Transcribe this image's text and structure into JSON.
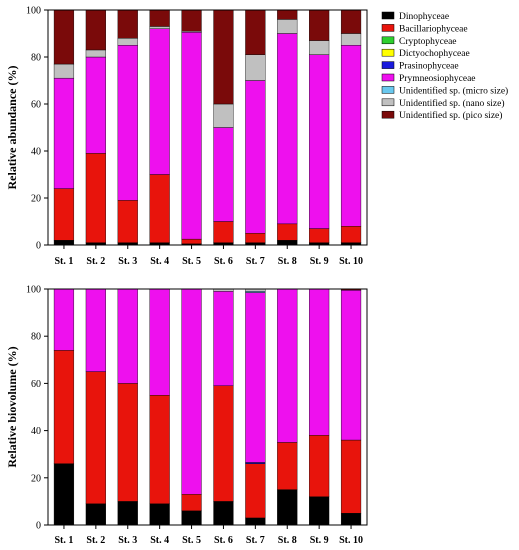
{
  "chart_data": [
    {
      "type": "bar",
      "stacked": true,
      "categories": [
        "St. 1",
        "St. 2",
        "St. 3",
        "St. 4",
        "St. 5",
        "St. 6",
        "St. 7",
        "St. 8",
        "St. 9",
        "St. 10"
      ],
      "ylabel": "Relative abundance (%)",
      "ylim": [
        0,
        100
      ],
      "yticks": [
        0,
        20,
        40,
        60,
        80,
        100
      ],
      "legend": "right",
      "series": [
        {
          "name": "Dinophyceae",
          "color": "#000000",
          "values": [
            2,
            1,
            1,
            1,
            0.5,
            1,
            1,
            2,
            1,
            1
          ]
        },
        {
          "name": "Bacillariophyceae",
          "color": "#e8140c",
          "values": [
            22,
            38,
            18,
            29,
            2,
            9,
            4,
            7,
            6,
            7
          ]
        },
        {
          "name": "Cryptophyceae",
          "color": "#2fcf2f",
          "values": [
            0,
            0,
            0,
            0,
            0,
            0,
            0,
            0,
            0,
            0
          ]
        },
        {
          "name": "Dictyochophyceae",
          "color": "#ffff00",
          "values": [
            0,
            0,
            0,
            0,
            0,
            0,
            0,
            0,
            0,
            0
          ]
        },
        {
          "name": "Prasinophyceae",
          "color": "#1a1adc",
          "values": [
            0,
            0,
            0,
            0,
            0,
            0,
            0,
            0,
            0,
            0
          ]
        },
        {
          "name": "Prymneosiophyceae",
          "color": "#ee10ee",
          "values": [
            47,
            41,
            66,
            62,
            88,
            40,
            65,
            81,
            74,
            77
          ]
        },
        {
          "name": "Unidentified sp. (micro size)",
          "color": "#69c8ee",
          "values": [
            0,
            0,
            0,
            0,
            0,
            0,
            0,
            0,
            0,
            0
          ]
        },
        {
          "name": "Unidentified sp. (nano size)",
          "color": "#c0c0c0",
          "values": [
            6,
            3,
            3,
            1,
            0.5,
            10,
            11,
            6,
            6,
            5
          ]
        },
        {
          "name": "Unidentified sp. (pico size)",
          "color": "#7a0a0a",
          "values": [
            23,
            17,
            12,
            7,
            9,
            40,
            19,
            4,
            13,
            10
          ]
        }
      ]
    },
    {
      "type": "bar",
      "stacked": true,
      "categories": [
        "St. 1",
        "St. 2",
        "St. 3",
        "St. 4",
        "St. 5",
        "St. 6",
        "St. 7",
        "St. 8",
        "St. 9",
        "St. 10"
      ],
      "ylabel": "Relative biovolume (%)",
      "ylim": [
        0,
        100
      ],
      "yticks": [
        0,
        20,
        40,
        60,
        80,
        100
      ],
      "series": [
        {
          "name": "Dinophyceae",
          "color": "#000000",
          "values": [
            26,
            9,
            10,
            9,
            6,
            10,
            3,
            15,
            12,
            5
          ]
        },
        {
          "name": "Bacillariophyceae",
          "color": "#e8140c",
          "values": [
            48,
            56,
            50,
            46,
            7,
            49,
            23,
            20,
            26,
            31
          ]
        },
        {
          "name": "Cryptophyceae",
          "color": "#2fcf2f",
          "values": [
            0,
            0,
            0,
            0,
            0,
            0,
            0,
            0,
            0,
            0
          ]
        },
        {
          "name": "Dictyochophyceae",
          "color": "#ffff00",
          "values": [
            0,
            0,
            0,
            0,
            0,
            0,
            0,
            0,
            0,
            0
          ]
        },
        {
          "name": "Prasinophyceae",
          "color": "#1a1adc",
          "values": [
            0,
            0,
            0,
            0,
            0,
            0,
            0.5,
            0,
            0,
            0
          ]
        },
        {
          "name": "Prymneosiophyceae",
          "color": "#ee10ee",
          "values": [
            26,
            35,
            40,
            45,
            87,
            40,
            72,
            65,
            62,
            63.5
          ]
        },
        {
          "name": "Unidentified sp. (micro size)",
          "color": "#69c8ee",
          "values": [
            0,
            0,
            0,
            0,
            0,
            0,
            0.5,
            0,
            0,
            0
          ]
        },
        {
          "name": "Unidentified sp. (nano size)",
          "color": "#c0c0c0",
          "values": [
            0,
            0,
            0,
            0,
            0,
            1,
            1,
            0,
            0,
            0
          ]
        },
        {
          "name": "Unidentified sp. (pico size)",
          "color": "#7a0a0a",
          "values": [
            0,
            0,
            0,
            0,
            0,
            0,
            0,
            0,
            0,
            0.5
          ]
        }
      ]
    }
  ]
}
